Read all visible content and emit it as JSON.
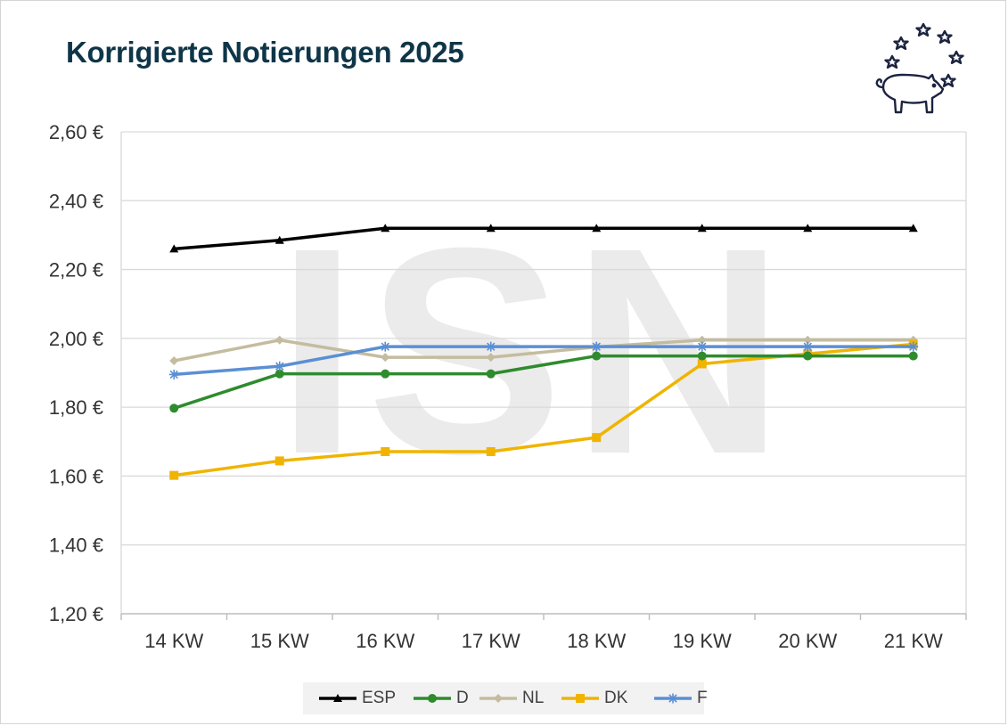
{
  "chart_data": {
    "type": "line",
    "title": "Korrigierte Notierungen 2025",
    "categories": [
      "14 KW",
      "15 KW",
      "16 KW",
      "17 KW",
      "18 KW",
      "19 KW",
      "20 KW",
      "21 KW"
    ],
    "ylim": [
      1.2,
      2.6
    ],
    "yticks": [
      "1,20 €",
      "1,40 €",
      "1,60 €",
      "1,80 €",
      "2,00 €",
      "2,20 €",
      "2,40 €",
      "2,60 €"
    ],
    "grid": true,
    "legend_position": "bottom",
    "series": [
      {
        "name": "ESP",
        "color": "#000000",
        "marker": "triangle",
        "values": [
          2.26,
          2.285,
          2.32,
          2.32,
          2.32,
          2.32,
          2.32,
          2.32
        ]
      },
      {
        "name": "D",
        "color": "#2e8b2e",
        "marker": "circle",
        "values": [
          1.797,
          1.897,
          1.897,
          1.897,
          1.949,
          1.949,
          1.949,
          1.949
        ]
      },
      {
        "name": "NL",
        "color": "#c4bc9e",
        "marker": "diamond",
        "values": [
          1.935,
          1.995,
          1.945,
          1.945,
          1.975,
          1.995,
          1.995,
          1.995
        ]
      },
      {
        "name": "DK",
        "color": "#f0b400",
        "marker": "square",
        "values": [
          1.602,
          1.644,
          1.671,
          1.671,
          1.712,
          1.926,
          1.955,
          1.983
        ]
      },
      {
        "name": "F",
        "color": "#5b8fd4",
        "marker": "star",
        "values": [
          1.895,
          1.919,
          1.976,
          1.976,
          1.976,
          1.976,
          1.976,
          1.976
        ]
      }
    ]
  },
  "logo": {
    "icon": "pig-with-stars-icon",
    "color": "#1c2340"
  },
  "watermark": {
    "text": "ISN"
  }
}
